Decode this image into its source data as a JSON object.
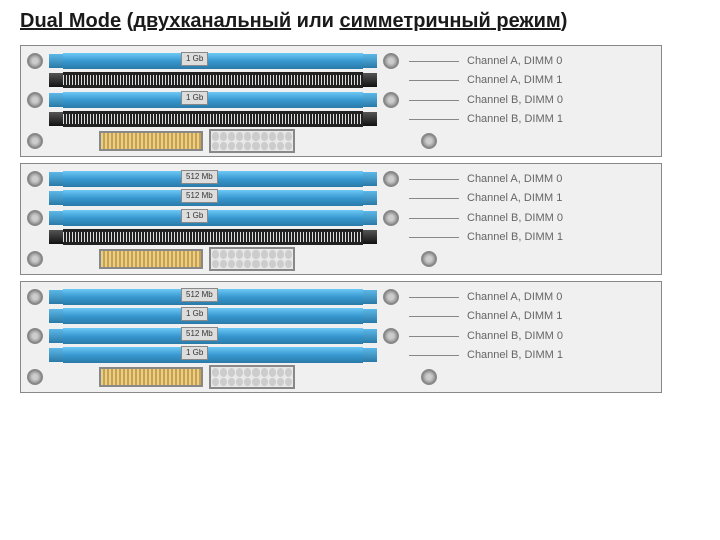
{
  "title_parts": {
    "p1": "Dual Mode",
    "p2": " (",
    "p3": "двухканальный",
    "p4": " или ",
    "p5": "симметричный",
    "p6": " режим",
    "p7": ")"
  },
  "configs": [
    {
      "groups": [
        {
          "slots": [
            {
              "populated": true,
              "color": "blue",
              "capacity": "1 Gb",
              "label": "Channel A, DIMM 0"
            },
            {
              "populated": false,
              "color": "black",
              "capacity": null,
              "label": "Channel A, DIMM 1"
            }
          ]
        },
        {
          "slots": [
            {
              "populated": true,
              "color": "blue",
              "capacity": "1 Gb",
              "label": "Channel B, DIMM 0"
            },
            {
              "populated": false,
              "color": "black",
              "capacity": null,
              "label": "Channel B, DIMM 1"
            }
          ]
        }
      ]
    },
    {
      "groups": [
        {
          "slots": [
            {
              "populated": true,
              "color": "blue",
              "capacity": "512 Mb",
              "label": "Channel A, DIMM 0"
            },
            {
              "populated": true,
              "color": "blue",
              "capacity": "512 Mb",
              "label": "Channel A, DIMM 1"
            }
          ]
        },
        {
          "slots": [
            {
              "populated": true,
              "color": "blue",
              "capacity": "1 Gb",
              "label": "Channel B, DIMM 0"
            },
            {
              "populated": false,
              "color": "black",
              "capacity": null,
              "label": "Channel B, DIMM 1"
            }
          ]
        }
      ]
    },
    {
      "groups": [
        {
          "slots": [
            {
              "populated": true,
              "color": "blue",
              "capacity": "512 Mb",
              "label": "Channel A, DIMM 0"
            },
            {
              "populated": true,
              "color": "blue",
              "capacity": "1 Gb",
              "label": "Channel A, DIMM 1"
            }
          ]
        },
        {
          "slots": [
            {
              "populated": true,
              "color": "blue",
              "capacity": "512 Mb",
              "label": "Channel B, DIMM 0"
            },
            {
              "populated": true,
              "color": "blue",
              "capacity": "1 Gb",
              "label": "Channel B, DIMM 1"
            }
          ]
        }
      ]
    }
  ],
  "colors": {
    "slot_blue_top": "#6cc8f5",
    "slot_blue_bot": "#2a7aa8",
    "slot_black": "#222222",
    "border": "#888888",
    "label_text": "#666666",
    "bg": "#f0f0f0"
  }
}
